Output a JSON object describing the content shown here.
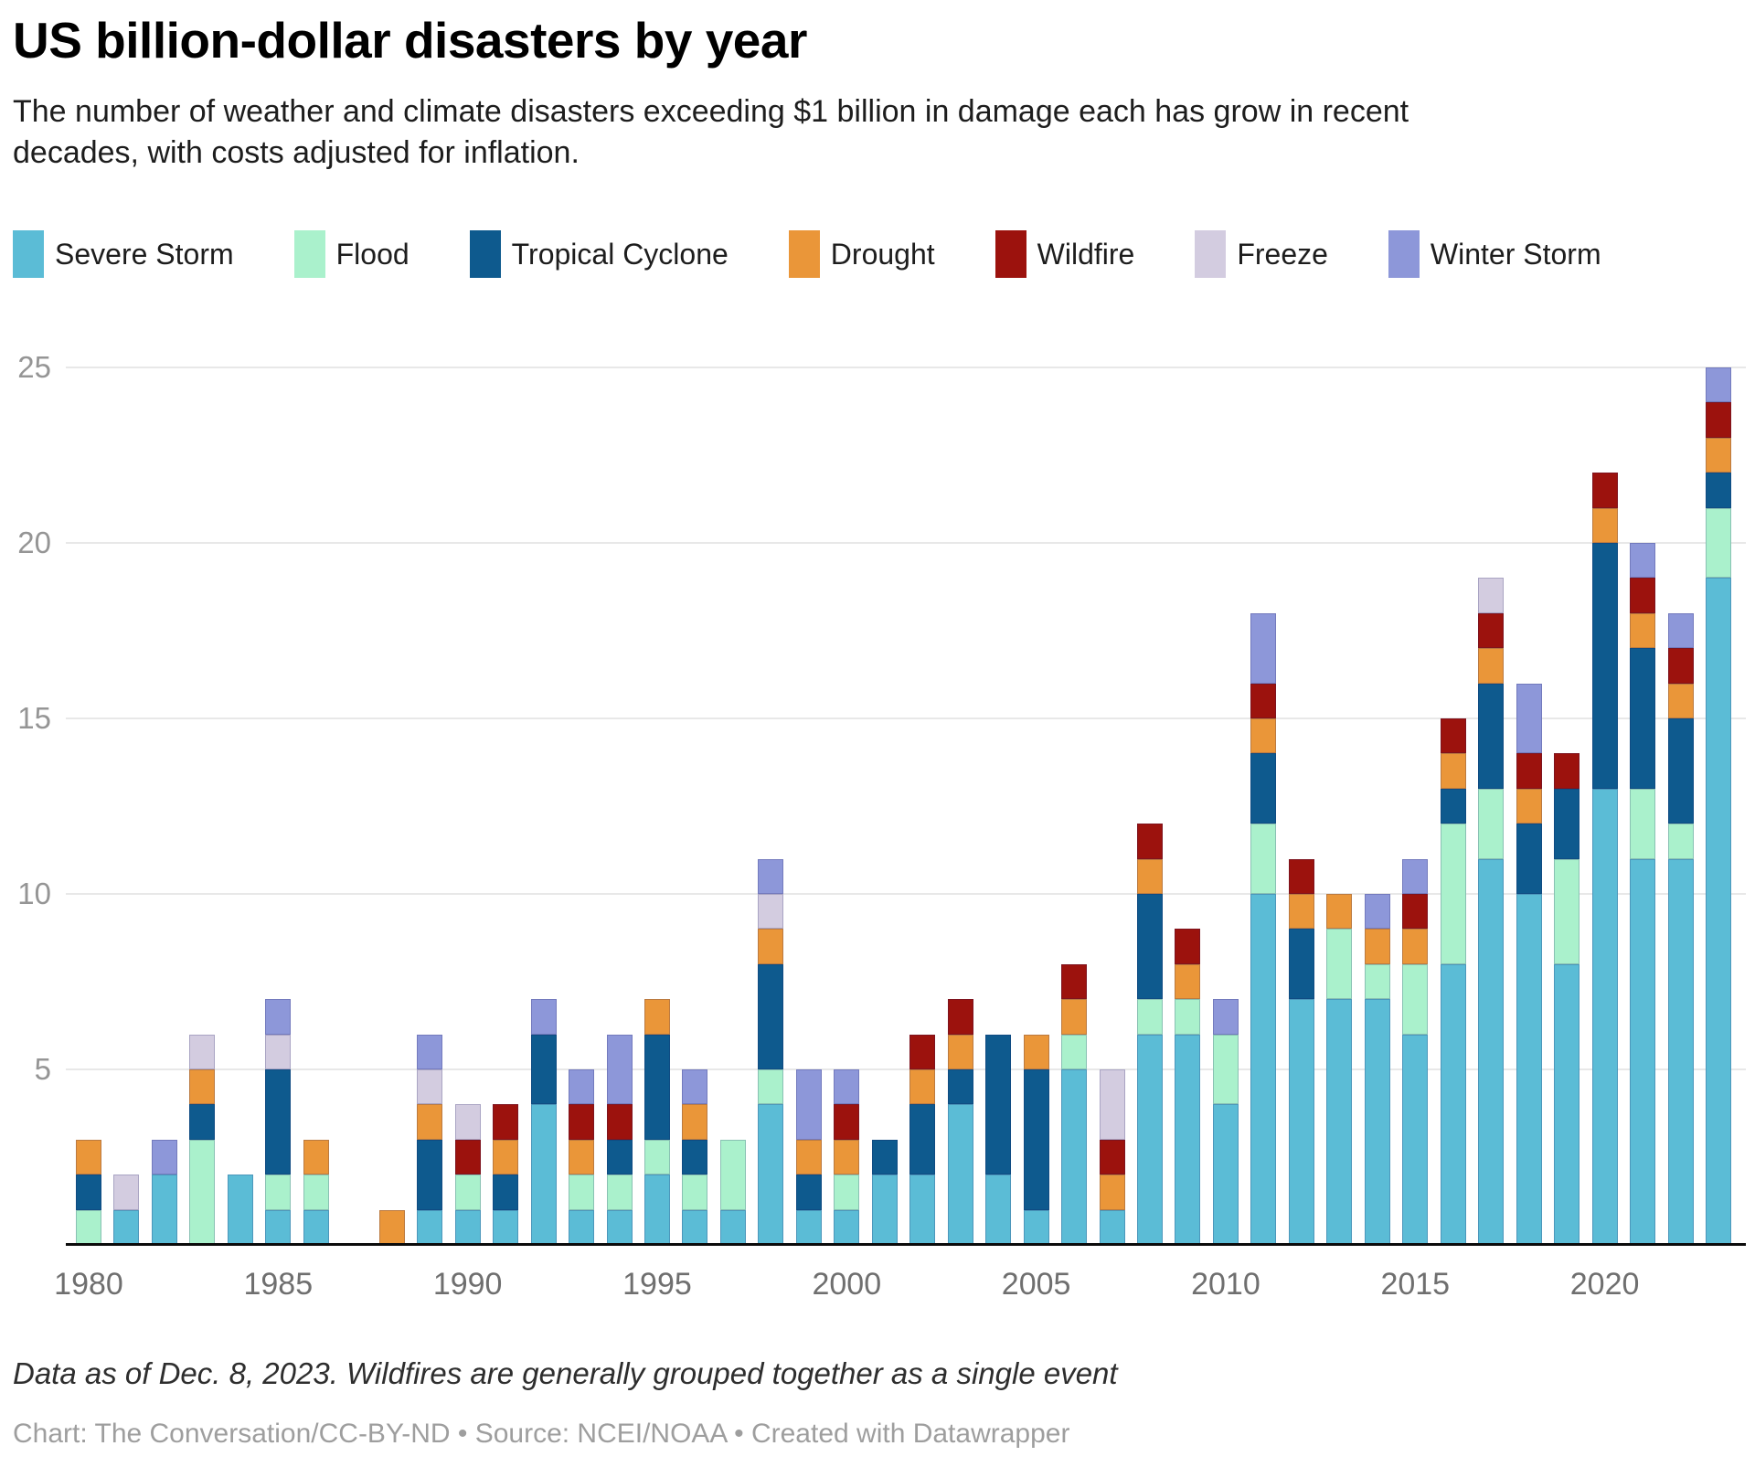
{
  "header": {
    "title": "US billion-dollar disasters by year",
    "subtitle": "The number of weather and climate disasters exceeding $1 billion in damage each has grow in recent decades, with costs adjusted for inflation."
  },
  "chart_data": {
    "type": "bar",
    "stacked": true,
    "title": "US billion-dollar disasters by year",
    "xlabel": "",
    "ylabel": "",
    "ylim": [
      0,
      25
    ],
    "yticks": [
      5,
      10,
      15,
      20,
      25
    ],
    "xticks": [
      1980,
      1985,
      1990,
      1995,
      2000,
      2005,
      2010,
      2015,
      2020
    ],
    "grid": "horizontal",
    "legend_position": "top",
    "categories": [
      1980,
      1981,
      1982,
      1983,
      1984,
      1985,
      1986,
      1987,
      1988,
      1989,
      1990,
      1991,
      1992,
      1993,
      1994,
      1995,
      1996,
      1997,
      1998,
      1999,
      2000,
      2001,
      2002,
      2003,
      2004,
      2005,
      2006,
      2007,
      2008,
      2009,
      2010,
      2011,
      2012,
      2013,
      2014,
      2015,
      2016,
      2017,
      2018,
      2019,
      2020,
      2021,
      2022,
      2023
    ],
    "series": [
      {
        "name": "Severe Storm",
        "color": "#5bbcd6",
        "values": [
          0,
          1,
          2,
          0,
          2,
          1,
          1,
          0,
          0,
          1,
          1,
          1,
          4,
          1,
          1,
          2,
          1,
          1,
          4,
          1,
          1,
          2,
          2,
          4,
          2,
          1,
          5,
          1,
          6,
          6,
          4,
          10,
          7,
          7,
          7,
          6,
          8,
          11,
          10,
          8,
          13,
          11,
          11,
          19
        ]
      },
      {
        "name": "Flood",
        "color": "#aaf1cc",
        "values": [
          1,
          0,
          0,
          3,
          0,
          1,
          1,
          0,
          0,
          0,
          1,
          0,
          0,
          1,
          1,
          1,
          1,
          2,
          1,
          0,
          1,
          0,
          0,
          0,
          0,
          0,
          1,
          0,
          1,
          1,
          2,
          2,
          0,
          2,
          1,
          2,
          4,
          2,
          0,
          3,
          0,
          2,
          1,
          2
        ]
      },
      {
        "name": "Tropical Cyclone",
        "color": "#0e5a8e",
        "values": [
          1,
          0,
          0,
          1,
          0,
          3,
          0,
          0,
          0,
          2,
          0,
          1,
          2,
          0,
          1,
          3,
          1,
          0,
          3,
          1,
          0,
          1,
          2,
          1,
          4,
          4,
          0,
          0,
          3,
          0,
          0,
          2,
          2,
          0,
          0,
          0,
          1,
          3,
          2,
          2,
          7,
          4,
          3,
          1
        ]
      },
      {
        "name": "Drought",
        "color": "#ea9639",
        "values": [
          1,
          0,
          0,
          1,
          0,
          0,
          1,
          0,
          1,
          1,
          0,
          1,
          0,
          1,
          0,
          1,
          1,
          0,
          1,
          1,
          1,
          0,
          1,
          1,
          0,
          1,
          1,
          1,
          1,
          1,
          0,
          1,
          1,
          1,
          1,
          1,
          1,
          1,
          1,
          0,
          1,
          1,
          1,
          1
        ]
      },
      {
        "name": "Wildfire",
        "color": "#9c120d",
        "values": [
          0,
          0,
          0,
          0,
          0,
          0,
          0,
          0,
          0,
          0,
          1,
          1,
          0,
          1,
          1,
          0,
          0,
          0,
          0,
          0,
          1,
          0,
          1,
          1,
          0,
          0,
          1,
          1,
          1,
          1,
          0,
          1,
          1,
          0,
          0,
          1,
          1,
          1,
          1,
          1,
          1,
          1,
          1,
          1
        ]
      },
      {
        "name": "Freeze",
        "color": "#d3cce0",
        "values": [
          0,
          1,
          0,
          1,
          0,
          1,
          0,
          0,
          0,
          1,
          1,
          0,
          0,
          0,
          0,
          0,
          0,
          0,
          1,
          0,
          0,
          0,
          0,
          0,
          0,
          0,
          0,
          2,
          0,
          0,
          0,
          0,
          0,
          0,
          0,
          0,
          0,
          1,
          0,
          0,
          0,
          0,
          0,
          0
        ]
      },
      {
        "name": "Winter Storm",
        "color": "#8d97d9",
        "values": [
          0,
          0,
          1,
          0,
          0,
          1,
          0,
          0,
          0,
          1,
          0,
          0,
          1,
          1,
          2,
          0,
          1,
          0,
          1,
          2,
          1,
          0,
          0,
          0,
          0,
          0,
          0,
          0,
          0,
          0,
          1,
          2,
          0,
          0,
          1,
          1,
          0,
          0,
          2,
          0,
          0,
          1,
          1,
          1
        ]
      }
    ]
  },
  "footer": {
    "note": "Data as of Dec. 8, 2023. Wildfires are generally grouped together as a single event",
    "byline": "Chart: The Conversation/CC-BY-ND • Source: NCEI/NOAA • Created with Datawrapper"
  }
}
